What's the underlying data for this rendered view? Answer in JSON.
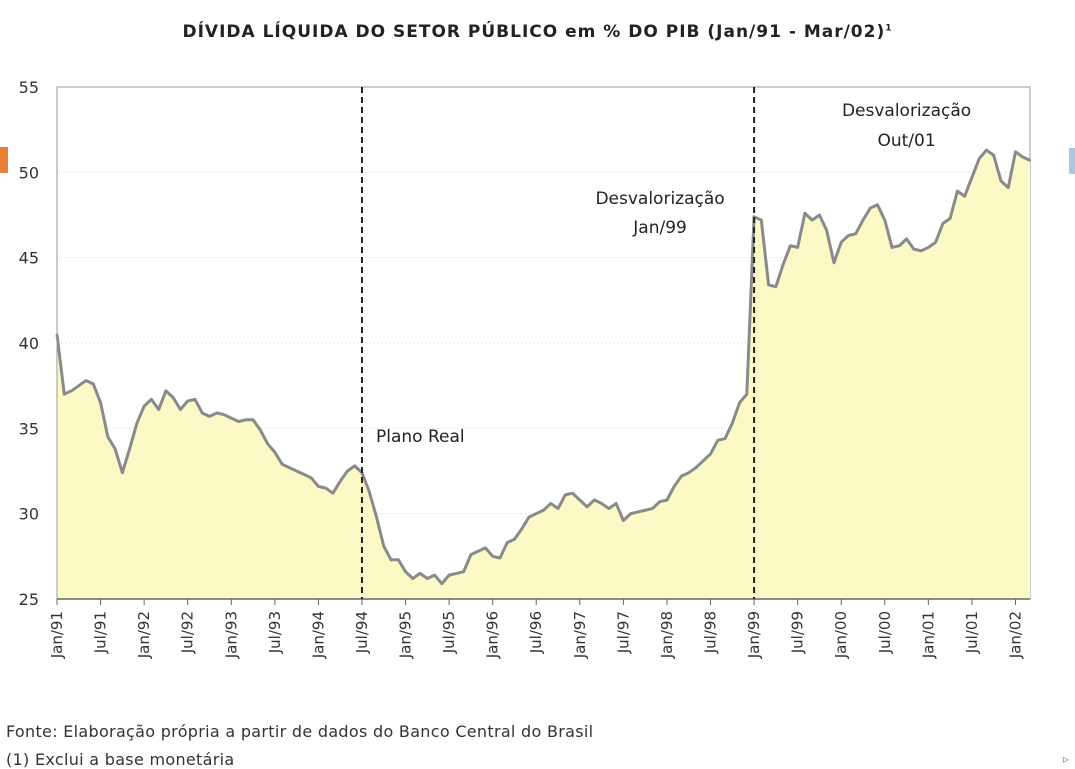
{
  "chart_data": {
    "type": "area",
    "title": "DÍVIDA LÍQUIDA DO SETOR PÚBLICO em % DO PIB (Jan/91 - Mar/02)",
    "title_superscript": "1",
    "ylim": [
      25,
      55
    ],
    "yticks": [
      25,
      30,
      35,
      40,
      45,
      50,
      55
    ],
    "xlim": [
      "1991-01",
      "2002-03"
    ],
    "xticks": [
      "Jan/91",
      "Jul/91",
      "Jan/92",
      "Jul/92",
      "Jan/93",
      "Jul/93",
      "Jan/94",
      "Jul/94",
      "Jan/95",
      "Jul/95",
      "Jan/96",
      "Jul/96",
      "Jan/97",
      "Jul/97",
      "Jan/98",
      "Jul/98",
      "Jan/99",
      "Jul/99",
      "Jan/00",
      "Jul/00",
      "Jan/01",
      "Jul/01",
      "Jan/02"
    ],
    "grid": "horizontal dotted",
    "fill_color": "#fbf9c6",
    "line_color": "#8a8a8a",
    "series": [
      {
        "points": [
          [
            "1991-01",
            40.5
          ],
          [
            "1991-02",
            37.0
          ],
          [
            "1991-03",
            37.2
          ],
          [
            "1991-04",
            37.5
          ],
          [
            "1991-05",
            37.8
          ],
          [
            "1991-06",
            37.6
          ],
          [
            "1991-07",
            36.5
          ],
          [
            "1991-08",
            34.5
          ],
          [
            "1991-09",
            33.8
          ],
          [
            "1991-10",
            32.4
          ],
          [
            "1991-11",
            33.8
          ],
          [
            "1991-12",
            35.3
          ],
          [
            "1992-01",
            36.3
          ],
          [
            "1992-02",
            36.7
          ],
          [
            "1992-03",
            36.1
          ],
          [
            "1992-04",
            37.2
          ],
          [
            "1992-05",
            36.8
          ],
          [
            "1992-06",
            36.1
          ],
          [
            "1992-07",
            36.6
          ],
          [
            "1992-08",
            36.7
          ],
          [
            "1992-09",
            35.9
          ],
          [
            "1992-10",
            35.7
          ],
          [
            "1992-11",
            35.9
          ],
          [
            "1992-12",
            35.8
          ],
          [
            "1993-01",
            35.6
          ],
          [
            "1993-02",
            35.4
          ],
          [
            "1993-03",
            35.5
          ],
          [
            "1993-04",
            35.5
          ],
          [
            "1993-05",
            34.9
          ],
          [
            "1993-06",
            34.1
          ],
          [
            "1993-07",
            33.6
          ],
          [
            "1993-08",
            32.9
          ],
          [
            "1993-09",
            32.7
          ],
          [
            "1993-10",
            32.5
          ],
          [
            "1993-11",
            32.3
          ],
          [
            "1993-12",
            32.1
          ],
          [
            "1994-01",
            31.6
          ],
          [
            "1994-02",
            31.5
          ],
          [
            "1994-03",
            31.2
          ],
          [
            "1994-04",
            31.9
          ],
          [
            "1994-05",
            32.5
          ],
          [
            "1994-06",
            32.8
          ],
          [
            "1994-07",
            32.4
          ],
          [
            "1994-08",
            31.3
          ],
          [
            "1994-09",
            29.8
          ],
          [
            "1994-10",
            28.1
          ],
          [
            "1994-11",
            27.3
          ],
          [
            "1994-12",
            27.3
          ],
          [
            "1995-01",
            26.6
          ],
          [
            "1995-02",
            26.2
          ],
          [
            "1995-03",
            26.5
          ],
          [
            "1995-04",
            26.2
          ],
          [
            "1995-05",
            26.4
          ],
          [
            "1995-06",
            25.9
          ],
          [
            "1995-07",
            26.4
          ],
          [
            "1995-08",
            26.5
          ],
          [
            "1995-09",
            26.6
          ],
          [
            "1995-10",
            27.6
          ],
          [
            "1995-11",
            27.8
          ],
          [
            "1995-12",
            28.0
          ],
          [
            "1996-01",
            27.5
          ],
          [
            "1996-02",
            27.4
          ],
          [
            "1996-03",
            28.3
          ],
          [
            "1996-04",
            28.5
          ],
          [
            "1996-05",
            29.1
          ],
          [
            "1996-06",
            29.8
          ],
          [
            "1996-07",
            30.0
          ],
          [
            "1996-08",
            30.2
          ],
          [
            "1996-09",
            30.6
          ],
          [
            "1996-10",
            30.3
          ],
          [
            "1996-11",
            31.1
          ],
          [
            "1996-12",
            31.2
          ],
          [
            "1997-01",
            30.8
          ],
          [
            "1997-02",
            30.4
          ],
          [
            "1997-03",
            30.8
          ],
          [
            "1997-04",
            30.6
          ],
          [
            "1997-05",
            30.3
          ],
          [
            "1997-06",
            30.6
          ],
          [
            "1997-07",
            29.6
          ],
          [
            "1997-08",
            30.0
          ],
          [
            "1997-09",
            30.1
          ],
          [
            "1997-10",
            30.2
          ],
          [
            "1997-11",
            30.3
          ],
          [
            "1997-12",
            30.7
          ],
          [
            "1998-01",
            30.8
          ],
          [
            "1998-02",
            31.6
          ],
          [
            "1998-03",
            32.2
          ],
          [
            "1998-04",
            32.4
          ],
          [
            "1998-05",
            32.7
          ],
          [
            "1998-06",
            33.1
          ],
          [
            "1998-07",
            33.5
          ],
          [
            "1998-08",
            34.3
          ],
          [
            "1998-09",
            34.4
          ],
          [
            "1998-10",
            35.3
          ],
          [
            "1998-11",
            36.5
          ],
          [
            "1998-12",
            37.0
          ],
          [
            "1999-01",
            47.4
          ],
          [
            "1999-02",
            47.2
          ],
          [
            "1999-03",
            43.4
          ],
          [
            "1999-04",
            43.3
          ],
          [
            "1999-05",
            44.6
          ],
          [
            "1999-06",
            45.7
          ],
          [
            "1999-07",
            45.6
          ],
          [
            "1999-08",
            47.6
          ],
          [
            "1999-09",
            47.2
          ],
          [
            "1999-10",
            47.5
          ],
          [
            "1999-11",
            46.6
          ],
          [
            "1999-12",
            44.7
          ],
          [
            "2000-01",
            45.9
          ],
          [
            "2000-02",
            46.3
          ],
          [
            "2000-03",
            46.4
          ],
          [
            "2000-04",
            47.2
          ],
          [
            "2000-05",
            47.9
          ],
          [
            "2000-06",
            48.1
          ],
          [
            "2000-07",
            47.2
          ],
          [
            "2000-08",
            45.6
          ],
          [
            "2000-09",
            45.7
          ],
          [
            "2000-10",
            46.1
          ],
          [
            "2000-11",
            45.5
          ],
          [
            "2000-12",
            45.4
          ],
          [
            "2001-01",
            45.6
          ],
          [
            "2001-02",
            45.9
          ],
          [
            "2001-03",
            47.0
          ],
          [
            "2001-04",
            47.3
          ],
          [
            "2001-05",
            48.9
          ],
          [
            "2001-06",
            48.6
          ],
          [
            "2001-07",
            49.7
          ],
          [
            "2001-08",
            50.8
          ],
          [
            "2001-09",
            51.3
          ],
          [
            "2001-10",
            51.0
          ],
          [
            "2001-11",
            49.5
          ],
          [
            "2001-12",
            49.1
          ],
          [
            "2002-01",
            51.2
          ],
          [
            "2002-02",
            50.9
          ],
          [
            "2002-03",
            50.7
          ]
        ]
      }
    ],
    "vlines": [
      {
        "date": "1994-07",
        "label": "Plano Real"
      },
      {
        "date": "1999-01",
        "label_lines": [
          "Desvalorização",
          "Jan/99"
        ]
      }
    ],
    "annotations": [
      {
        "label_lines": [
          "Desvalorização",
          "Out/01"
        ],
        "anchor_date": "2000-10",
        "y": 54.0
      }
    ]
  },
  "notes": {
    "source": "Fonte: Elaboração própria a partir de dados do Banco Central do Brasil",
    "footnote": "(1) Exclui a base monetária"
  }
}
